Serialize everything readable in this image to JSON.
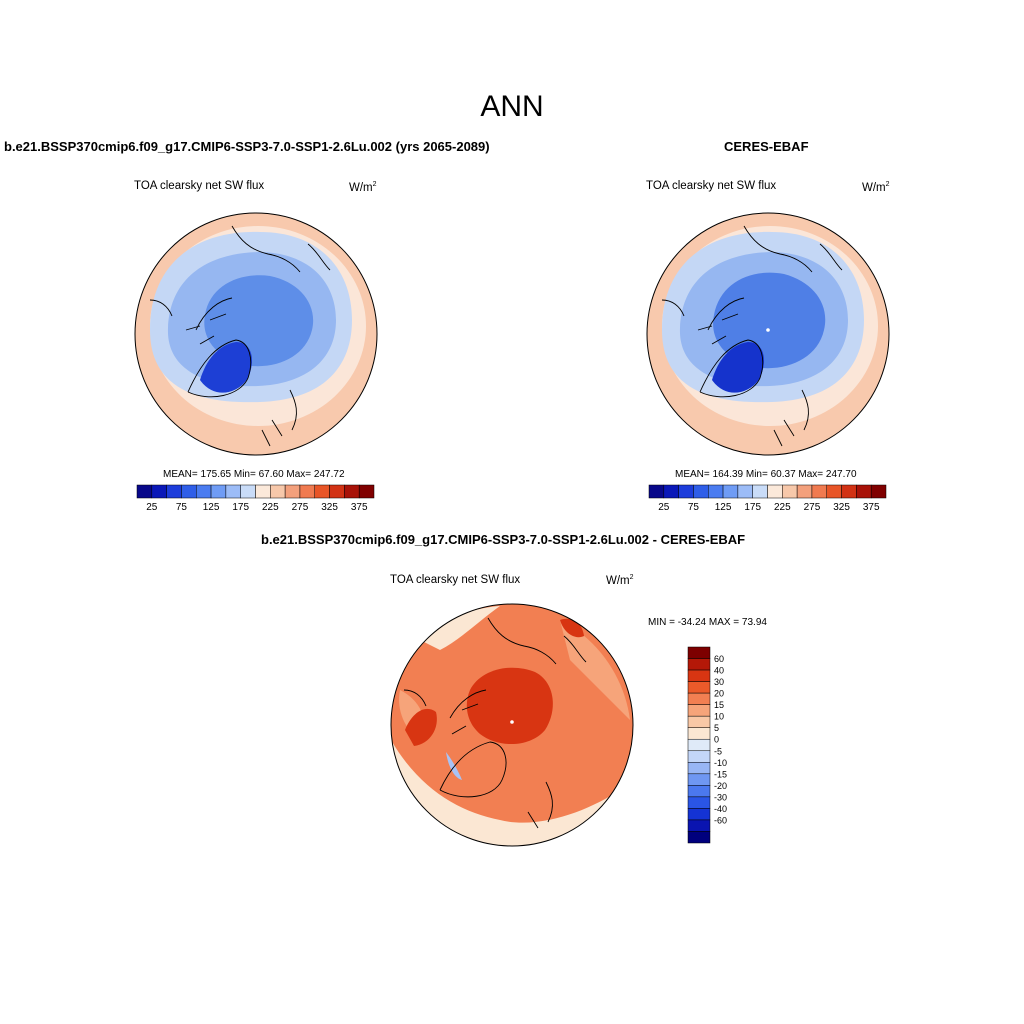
{
  "season": "ANN",
  "panels": [
    {
      "title": "b.e21.BSSP370cmip6.f09_g17.CMIP6-SSP3-7.0-SSP1-2.6Lu.002 (yrs 2065-2089)",
      "variable": "TOA clearsky net SW flux",
      "units": "W/m",
      "units_exp": "2",
      "stats": "MEAN= 175.65  Min=  67.60  Max= 247.72"
    },
    {
      "title": "CERES-EBAF",
      "variable": "TOA clearsky net SW flux",
      "units": "W/m",
      "units_exp": "2",
      "stats": "MEAN= 164.39  Min=  60.37  Max= 247.70"
    },
    {
      "title": "b.e21.BSSP370cmip6.f09_g17.CMIP6-SSP3-7.0-SSP1-2.6Lu.002 - CERES-EBAF",
      "variable": "TOA clearsky net SW flux",
      "units": "W/m",
      "units_exp": "2",
      "stats": "MIN = -34.24 MAX =  73.94"
    }
  ],
  "colorbar_main": {
    "colors": [
      "#08088a",
      "#0a18b8",
      "#1d3ddb",
      "#2f5ee8",
      "#4b7cf0",
      "#6f9cf5",
      "#9cbcf7",
      "#c9dcf8",
      "#fbe9da",
      "#f7c8aa",
      "#f3a07c",
      "#f07a50",
      "#e85527",
      "#d23214",
      "#a81208",
      "#800000"
    ],
    "labels": [
      "25",
      "75",
      "125",
      "175",
      "225",
      "275",
      "325",
      "375"
    ]
  },
  "colorbar_diff": {
    "colors": [
      "#00007d",
      "#0a14b0",
      "#1433d4",
      "#2a55e6",
      "#4b78ee",
      "#6f97f2",
      "#98b6f5",
      "#c3d6f8",
      "#dfeaf8",
      "#fbe7d3",
      "#f9c8a6",
      "#f6a47a",
      "#f27f52",
      "#eb5a2a",
      "#d83512",
      "#b41808",
      "#7d0000"
    ],
    "labels": [
      "60",
      "40",
      "30",
      "20",
      "15",
      "10",
      "5",
      "0",
      "-5",
      "-10",
      "-15",
      "-20",
      "-30",
      "-40",
      "-60"
    ]
  },
  "map_colors": {
    "panel1": {
      "outer": "#f8c9ad",
      "ring2": "#fbe6d8",
      "ring3": "#c4d7f5",
      "ring4": "#96b7f1",
      "core": "#5e8ee8",
      "greenland": "#1d3fd5"
    },
    "panel2": {
      "outer": "#f8c9ad",
      "ring2": "#fbe6d8",
      "ring3": "#c4d7f5",
      "ring4": "#96b7f1",
      "core": "#4f7fe6",
      "greenland": "#1533cc"
    },
    "diff": {
      "base": "#f27f52",
      "light": "#f6a47a",
      "pale": "#fbe7d3",
      "dark": "#d83512",
      "blue": "#a8c3f5"
    }
  }
}
